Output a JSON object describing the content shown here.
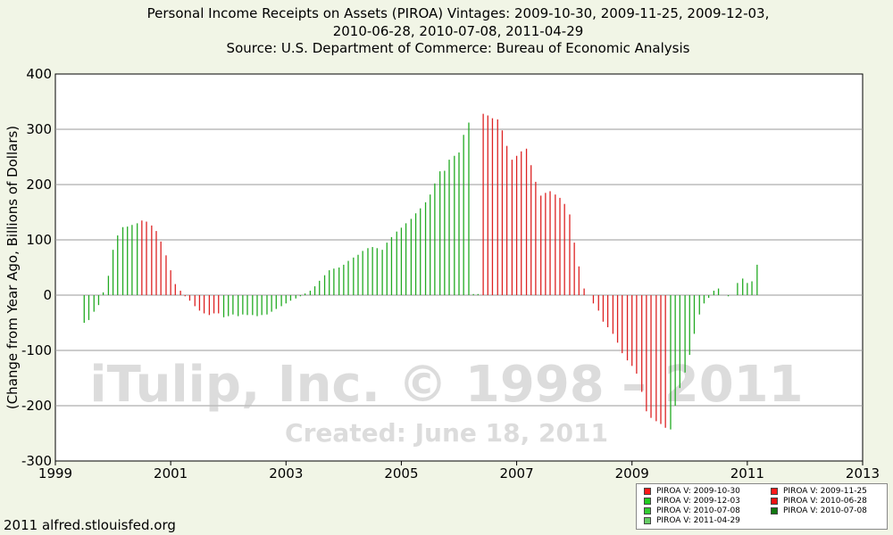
{
  "title": {
    "line1": "Personal Income Receipts on Assets (PIROA) Vintages: 2009-10-30, 2009-11-25, 2009-12-03,",
    "line2": "2010-06-28, 2010-07-08, 2011-04-29",
    "line3": "Source: U.S. Department of Commerce: Bureau of Economic Analysis"
  },
  "footer": "2011 alfred.stlouisfed.org",
  "watermark": {
    "line1": "iTulip, Inc. © 1998 – 2011",
    "line2": "Created: June 18, 2011"
  },
  "legend": [
    {
      "label": "PIROA V: 2009-10-30",
      "color": "#ff1a1a"
    },
    {
      "label": "PIROA V: 2009-11-25",
      "color": "#ff1a1a"
    },
    {
      "label": "PIROA V: 2009-12-03",
      "color": "#22cc22"
    },
    {
      "label": "PIROA V: 2010-06-28",
      "color": "#ee1111"
    },
    {
      "label": "PIROA V: 2010-07-08",
      "color": "#33cc33"
    },
    {
      "label": "PIROA V: 2010-07-08",
      "color": "#117711"
    },
    {
      "label": "PIROA V: 2011-04-29",
      "color": "#66cc66"
    }
  ],
  "chart_data": {
    "type": "bar",
    "ylabel": "(Change from Year Ago, Billions of Dollars)",
    "xlim": [
      1999,
      2013
    ],
    "ylim": [
      -300,
      400
    ],
    "xticks": [
      "1999",
      "2001",
      "2003",
      "2005",
      "2007",
      "2009",
      "2011",
      "2013"
    ],
    "yticks": [
      "400",
      "300",
      "200",
      "100",
      "0",
      "-100",
      "-200",
      "-300"
    ],
    "grid": true,
    "colors": {
      "red": "#dd2222",
      "green": "#22aa22"
    },
    "series": [
      {
        "color": "green",
        "x": [
          1999.5,
          1999.58,
          1999.67,
          1999.75,
          1999.83,
          1999.92,
          2000.0,
          2000.08,
          2000.17,
          2000.25,
          2000.33,
          2000.42
        ],
        "values": [
          -50,
          -45,
          -30,
          -18,
          5,
          35,
          82,
          108,
          123,
          124,
          127,
          130
        ]
      },
      {
        "color": "red",
        "x": [
          2000.5,
          2000.58,
          2000.67,
          2000.75,
          2000.83,
          2000.92,
          2001.0,
          2001.08,
          2001.17,
          2001.25,
          2001.33,
          2001.42,
          2001.5,
          2001.58,
          2001.67,
          2001.75,
          2001.83
        ],
        "values": [
          135,
          133,
          126,
          116,
          97,
          72,
          45,
          20,
          8,
          -2,
          -10,
          -20,
          -28,
          -33,
          -36,
          -33,
          -33
        ]
      },
      {
        "color": "green",
        "x": [
          2001.92,
          2002.0,
          2002.08,
          2002.17,
          2002.25,
          2002.33,
          2002.42,
          2002.5,
          2002.58,
          2002.67,
          2002.75,
          2002.83,
          2002.92,
          2003.0,
          2003.08,
          2003.17,
          2003.25,
          2003.33,
          2003.42,
          2003.5,
          2003.58,
          2003.67,
          2003.75,
          2003.83,
          2003.92,
          2004.0,
          2004.08,
          2004.17,
          2004.25,
          2004.33,
          2004.42,
          2004.5,
          2004.58,
          2004.67,
          2004.75,
          2004.83,
          2004.92,
          2005.0,
          2005.08,
          2005.17,
          2005.25,
          2005.33,
          2005.42,
          2005.5,
          2005.58,
          2005.67,
          2005.75,
          2005.83,
          2005.92,
          2006.0,
          2006.08,
          2006.17,
          2006.25,
          2006.33
        ],
        "values": [
          -40,
          -38,
          -35,
          -38,
          -35,
          -36,
          -36,
          -38,
          -36,
          -35,
          -30,
          -25,
          -20,
          -15,
          -10,
          -6,
          -2,
          3,
          8,
          16,
          26,
          36,
          45,
          48,
          50,
          55,
          62,
          68,
          73,
          80,
          85,
          87,
          85,
          82,
          95,
          105,
          115,
          122,
          130,
          138,
          148,
          157,
          168,
          182,
          202,
          224,
          225,
          245,
          252,
          258,
          290,
          312,
          2,
          2
        ]
      },
      {
        "color": "red",
        "x": [
          2006.42,
          2006.5,
          2006.58,
          2006.67,
          2006.75,
          2006.83,
          2006.92,
          2007.0,
          2007.08,
          2007.17,
          2007.25,
          2007.33,
          2007.42,
          2007.5,
          2007.58,
          2007.67,
          2007.75,
          2007.83,
          2007.92,
          2008.0,
          2008.08,
          2008.17,
          2008.25,
          2008.33,
          2008.42,
          2008.5,
          2008.58,
          2008.67,
          2008.75,
          2008.83,
          2008.92,
          2009.0,
          2009.08,
          2009.17,
          2009.25,
          2009.33,
          2009.42,
          2009.5,
          2009.58
        ],
        "values": [
          328,
          325,
          320,
          318,
          298,
          270,
          245,
          252,
          260,
          265,
          235,
          205,
          180,
          185,
          188,
          182,
          176,
          165,
          146,
          95,
          52,
          12,
          0,
          -15,
          -28,
          -48,
          -58,
          -70,
          -86,
          -105,
          -118,
          -128,
          -142,
          -175,
          -210,
          -222,
          -228,
          -233,
          -240
        ]
      },
      {
        "color": "green",
        "x": [
          2009.67,
          2009.75,
          2009.83,
          2009.92,
          2010.0,
          2010.08,
          2010.17,
          2010.25,
          2010.33,
          2010.42,
          2010.5,
          2010.58,
          2010.67,
          2010.75,
          2010.83,
          2010.92,
          2011.0,
          2011.08,
          2011.17
        ],
        "values": [
          -243,
          -200,
          -168,
          -140,
          -108,
          -70,
          -35,
          -15,
          -5,
          8,
          12,
          0,
          -2,
          0,
          22,
          30,
          22,
          25,
          55
        ]
      }
    ]
  }
}
